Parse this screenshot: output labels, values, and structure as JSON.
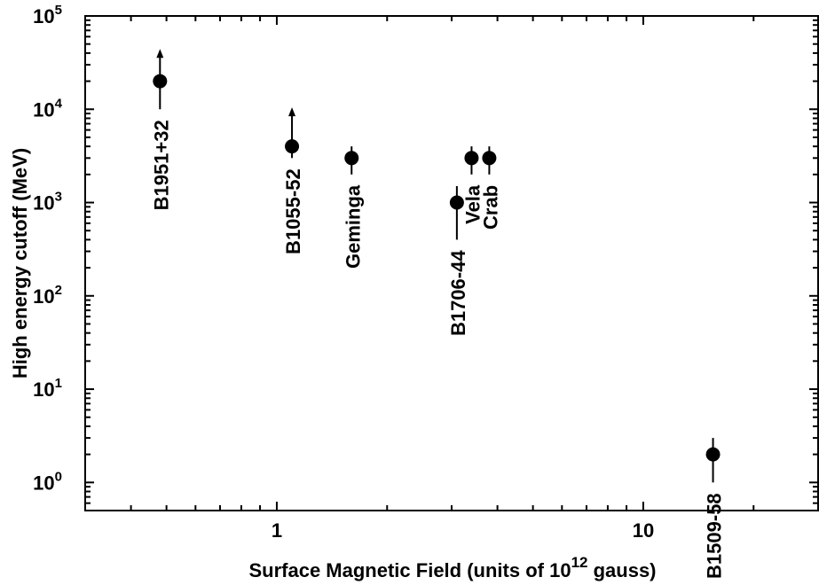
{
  "chart_data": {
    "type": "scatter",
    "title": "",
    "xlabel": "Surface Magnetic Field (units of 10",
    "xlabel_exp": "12",
    "xlabel_tail": " gauss)",
    "ylabel": "High energy cutoff (MeV)",
    "x_scale": "log",
    "y_scale": "log",
    "xlim": [
      0.3,
      30
    ],
    "ylim": [
      0.5,
      100000
    ],
    "x_ticks": [
      {
        "value": 1,
        "label": "1"
      },
      {
        "value": 10,
        "label": "10"
      }
    ],
    "y_ticks": [
      {
        "value": 1,
        "base": "10",
        "exp": "0"
      },
      {
        "value": 10,
        "base": "10",
        "exp": "1"
      },
      {
        "value": 100,
        "base": "10",
        "exp": "2"
      },
      {
        "value": 1000,
        "base": "10",
        "exp": "3"
      },
      {
        "value": 10000,
        "base": "10",
        "exp": "4"
      },
      {
        "value": 100000,
        "base": "10",
        "exp": "5"
      }
    ],
    "grid": false,
    "points": [
      {
        "name": "B1951+32",
        "x": 0.48,
        "y": 20000,
        "err_low": 10000,
        "err_high": 38000,
        "lower_limit": true
      },
      {
        "name": "B1055-52",
        "x": 1.1,
        "y": 4000,
        "err_low": 3000,
        "err_high": 9000,
        "lower_limit": true
      },
      {
        "name": "Geminga",
        "x": 1.6,
        "y": 3000,
        "err_low": 2000,
        "err_high": 4000,
        "lower_limit": false
      },
      {
        "name": "B1706-44",
        "x": 3.1,
        "y": 1000,
        "err_low": 400,
        "err_high": 1500,
        "lower_limit": false
      },
      {
        "name": "Vela",
        "x": 3.4,
        "y": 3000,
        "err_low": 2000,
        "err_high": 4000,
        "lower_limit": false
      },
      {
        "name": "Crab",
        "x": 3.8,
        "y": 3000,
        "err_low": 2000,
        "err_high": 4000,
        "lower_limit": false
      },
      {
        "name": "B1509-58",
        "x": 15.5,
        "y": 2,
        "err_low": 1,
        "err_high": 3,
        "lower_limit": false
      }
    ]
  }
}
